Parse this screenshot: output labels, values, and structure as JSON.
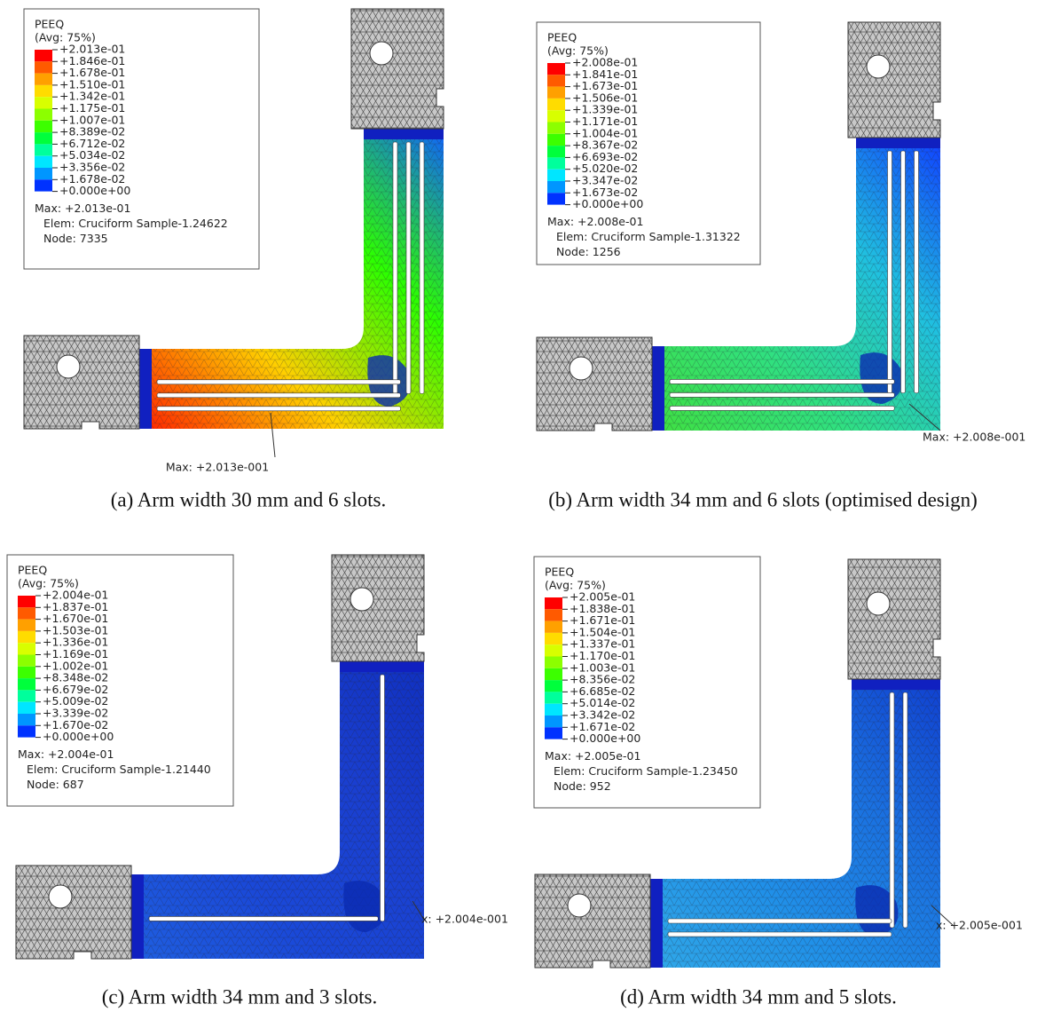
{
  "panels": [
    {
      "legend": {
        "title": "PEEQ",
        "average": "(Avg: 75%)",
        "levels": [
          "+2.013e-01",
          "+1.846e-01",
          "+1.678e-01",
          "+1.510e-01",
          "+1.342e-01",
          "+1.175e-01",
          "+1.007e-01",
          "+8.389e-02",
          "+6.712e-02",
          "+5.034e-02",
          "+3.356e-02",
          "+1.678e-02",
          "+0.000e+00"
        ],
        "max": "Max: +2.013e-01",
        "elem": "Elem: Cruciform Sample-1.24622",
        "node": "Node: 7335"
      },
      "max_annotation": "Max: +2.013e-001",
      "caption": "(a)  Arm width 30 mm and 6 slots."
    },
    {
      "legend": {
        "title": "PEEQ",
        "average": "(Avg: 75%)",
        "levels": [
          "+2.008e-01",
          "+1.841e-01",
          "+1.673e-01",
          "+1.506e-01",
          "+1.339e-01",
          "+1.171e-01",
          "+1.004e-01",
          "+8.367e-02",
          "+6.693e-02",
          "+5.020e-02",
          "+3.347e-02",
          "+1.673e-02",
          "+0.000e+00"
        ],
        "max": "Max: +2.008e-01",
        "elem": "Elem: Cruciform Sample-1.31322",
        "node": "Node: 1256"
      },
      "max_annotation": "Max: +2.008e-001",
      "caption": "(b) Arm width 34 mm and 6 slots (optimised design)"
    },
    {
      "legend": {
        "title": "PEEQ",
        "average": "(Avg: 75%)",
        "levels": [
          "+2.004e-01",
          "+1.837e-01",
          "+1.670e-01",
          "+1.503e-01",
          "+1.336e-01",
          "+1.169e-01",
          "+1.002e-01",
          "+8.348e-02",
          "+6.679e-02",
          "+5.009e-02",
          "+3.339e-02",
          "+1.670e-02",
          "+0.000e+00"
        ],
        "max": "Max: +2.004e-01",
        "elem": "Elem: Cruciform Sample-1.21440",
        "node": "Node: 687"
      },
      "max_annotation": "x: +2.004e-001",
      "caption": "(c) Arm width 34 mm and 3 slots."
    },
    {
      "legend": {
        "title": "PEEQ",
        "average": "(Avg: 75%)",
        "levels": [
          "+2.005e-01",
          "+1.838e-01",
          "+1.671e-01",
          "+1.504e-01",
          "+1.337e-01",
          "+1.170e-01",
          "+1.003e-01",
          "+8.356e-02",
          "+6.685e-02",
          "+5.014e-02",
          "+3.342e-02",
          "+1.671e-02",
          "+0.000e+00"
        ],
        "max": "Max: +2.005e-01",
        "elem": "Elem: Cruciform Sample-1.23450",
        "node": "Node: 952"
      },
      "max_annotation": "x: +2.005e-001",
      "caption": "(d) Arm width 34 mm and 5 slots."
    }
  ]
}
